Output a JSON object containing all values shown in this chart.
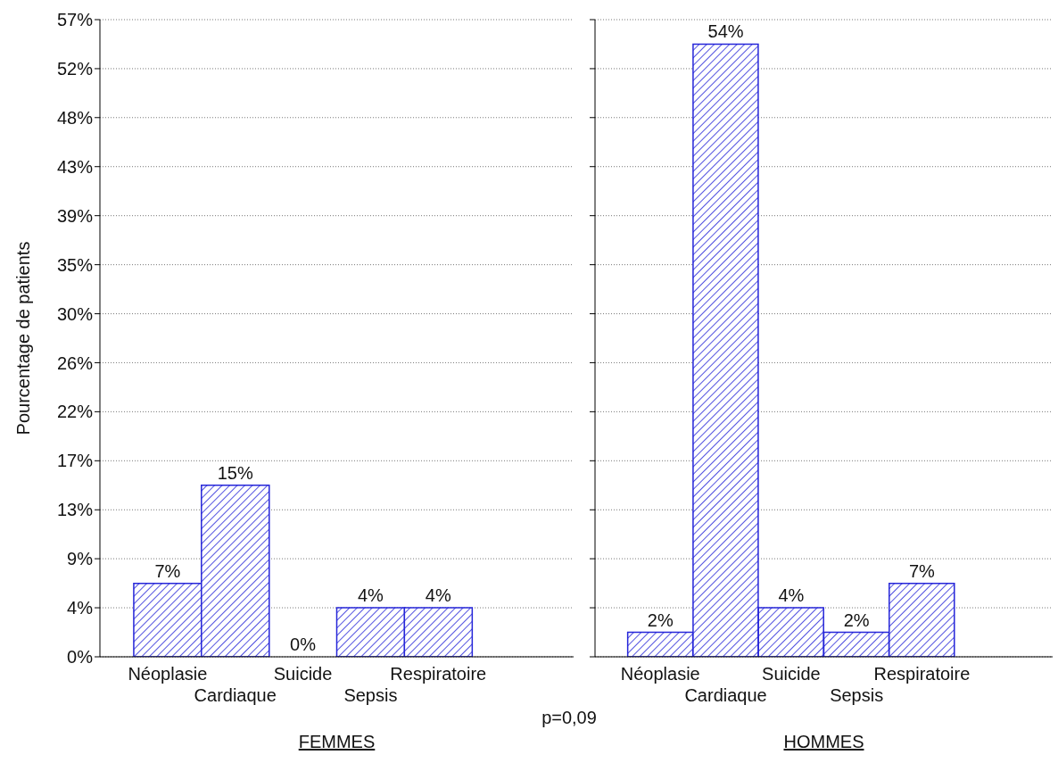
{
  "chart_data": [
    {
      "type": "bar",
      "ylabel": "Pourcentage de patients",
      "xlabel": "FEMMES",
      "categories": [
        "Néoplasie",
        "Cardiaque",
        "Suicide",
        "Sepsis",
        "Respiratoire"
      ],
      "values": [
        6.52,
        15.22,
        0,
        4.35,
        4.35
      ],
      "value_labels": [
        "7%",
        "15%",
        "0%",
        "4%",
        "4%"
      ],
      "color": "#2626d9",
      "ylim": [
        0,
        56.52
      ],
      "yticks": [
        {
          "value": 0,
          "label": "0%"
        },
        {
          "value": 4.35,
          "label": "4%"
        },
        {
          "value": 8.7,
          "label": "9%"
        },
        {
          "value": 13.04,
          "label": "13%"
        },
        {
          "value": 17.39,
          "label": "17%"
        },
        {
          "value": 21.74,
          "label": "22%"
        },
        {
          "value": 26.09,
          "label": "26%"
        },
        {
          "value": 30.43,
          "label": "30%"
        },
        {
          "value": 34.78,
          "label": "35%"
        },
        {
          "value": 39.13,
          "label": "39%"
        },
        {
          "value": 43.48,
          "label": "43%"
        },
        {
          "value": 47.83,
          "label": "48%"
        },
        {
          "value": 52.17,
          "label": "52%"
        },
        {
          "value": 56.52,
          "label": "57%"
        }
      ],
      "grid": "y",
      "annotations": [
        "p=0,09"
      ]
    },
    {
      "type": "bar",
      "xlabel": "HOMMES",
      "categories": [
        "Néoplasie",
        "Cardiaque",
        "Suicide",
        "Sepsis",
        "Respiratoire"
      ],
      "values": [
        2.17,
        54.35,
        4.35,
        2.17,
        6.52
      ],
      "value_labels": [
        "2%",
        "54%",
        "4%",
        "2%",
        "7%"
      ],
      "color": "#2626d9",
      "ylim": [
        0,
        56.52
      ],
      "yticks": [
        {
          "value": 0,
          "label": null
        },
        {
          "value": 4.35,
          "label": null
        },
        {
          "value": 8.7,
          "label": null
        },
        {
          "value": 13.04,
          "label": null
        },
        {
          "value": 17.39,
          "label": null
        },
        {
          "value": 21.74,
          "label": null
        },
        {
          "value": 26.09,
          "label": null
        },
        {
          "value": 30.43,
          "label": null
        },
        {
          "value": 34.78,
          "label": null
        },
        {
          "value": 39.13,
          "label": null
        },
        {
          "value": 43.48,
          "label": null
        },
        {
          "value": 47.83,
          "label": null
        },
        {
          "value": 52.17,
          "label": null
        },
        {
          "value": 56.52,
          "label": null
        }
      ],
      "grid": "y",
      "tick_labels": "x"
    }
  ]
}
